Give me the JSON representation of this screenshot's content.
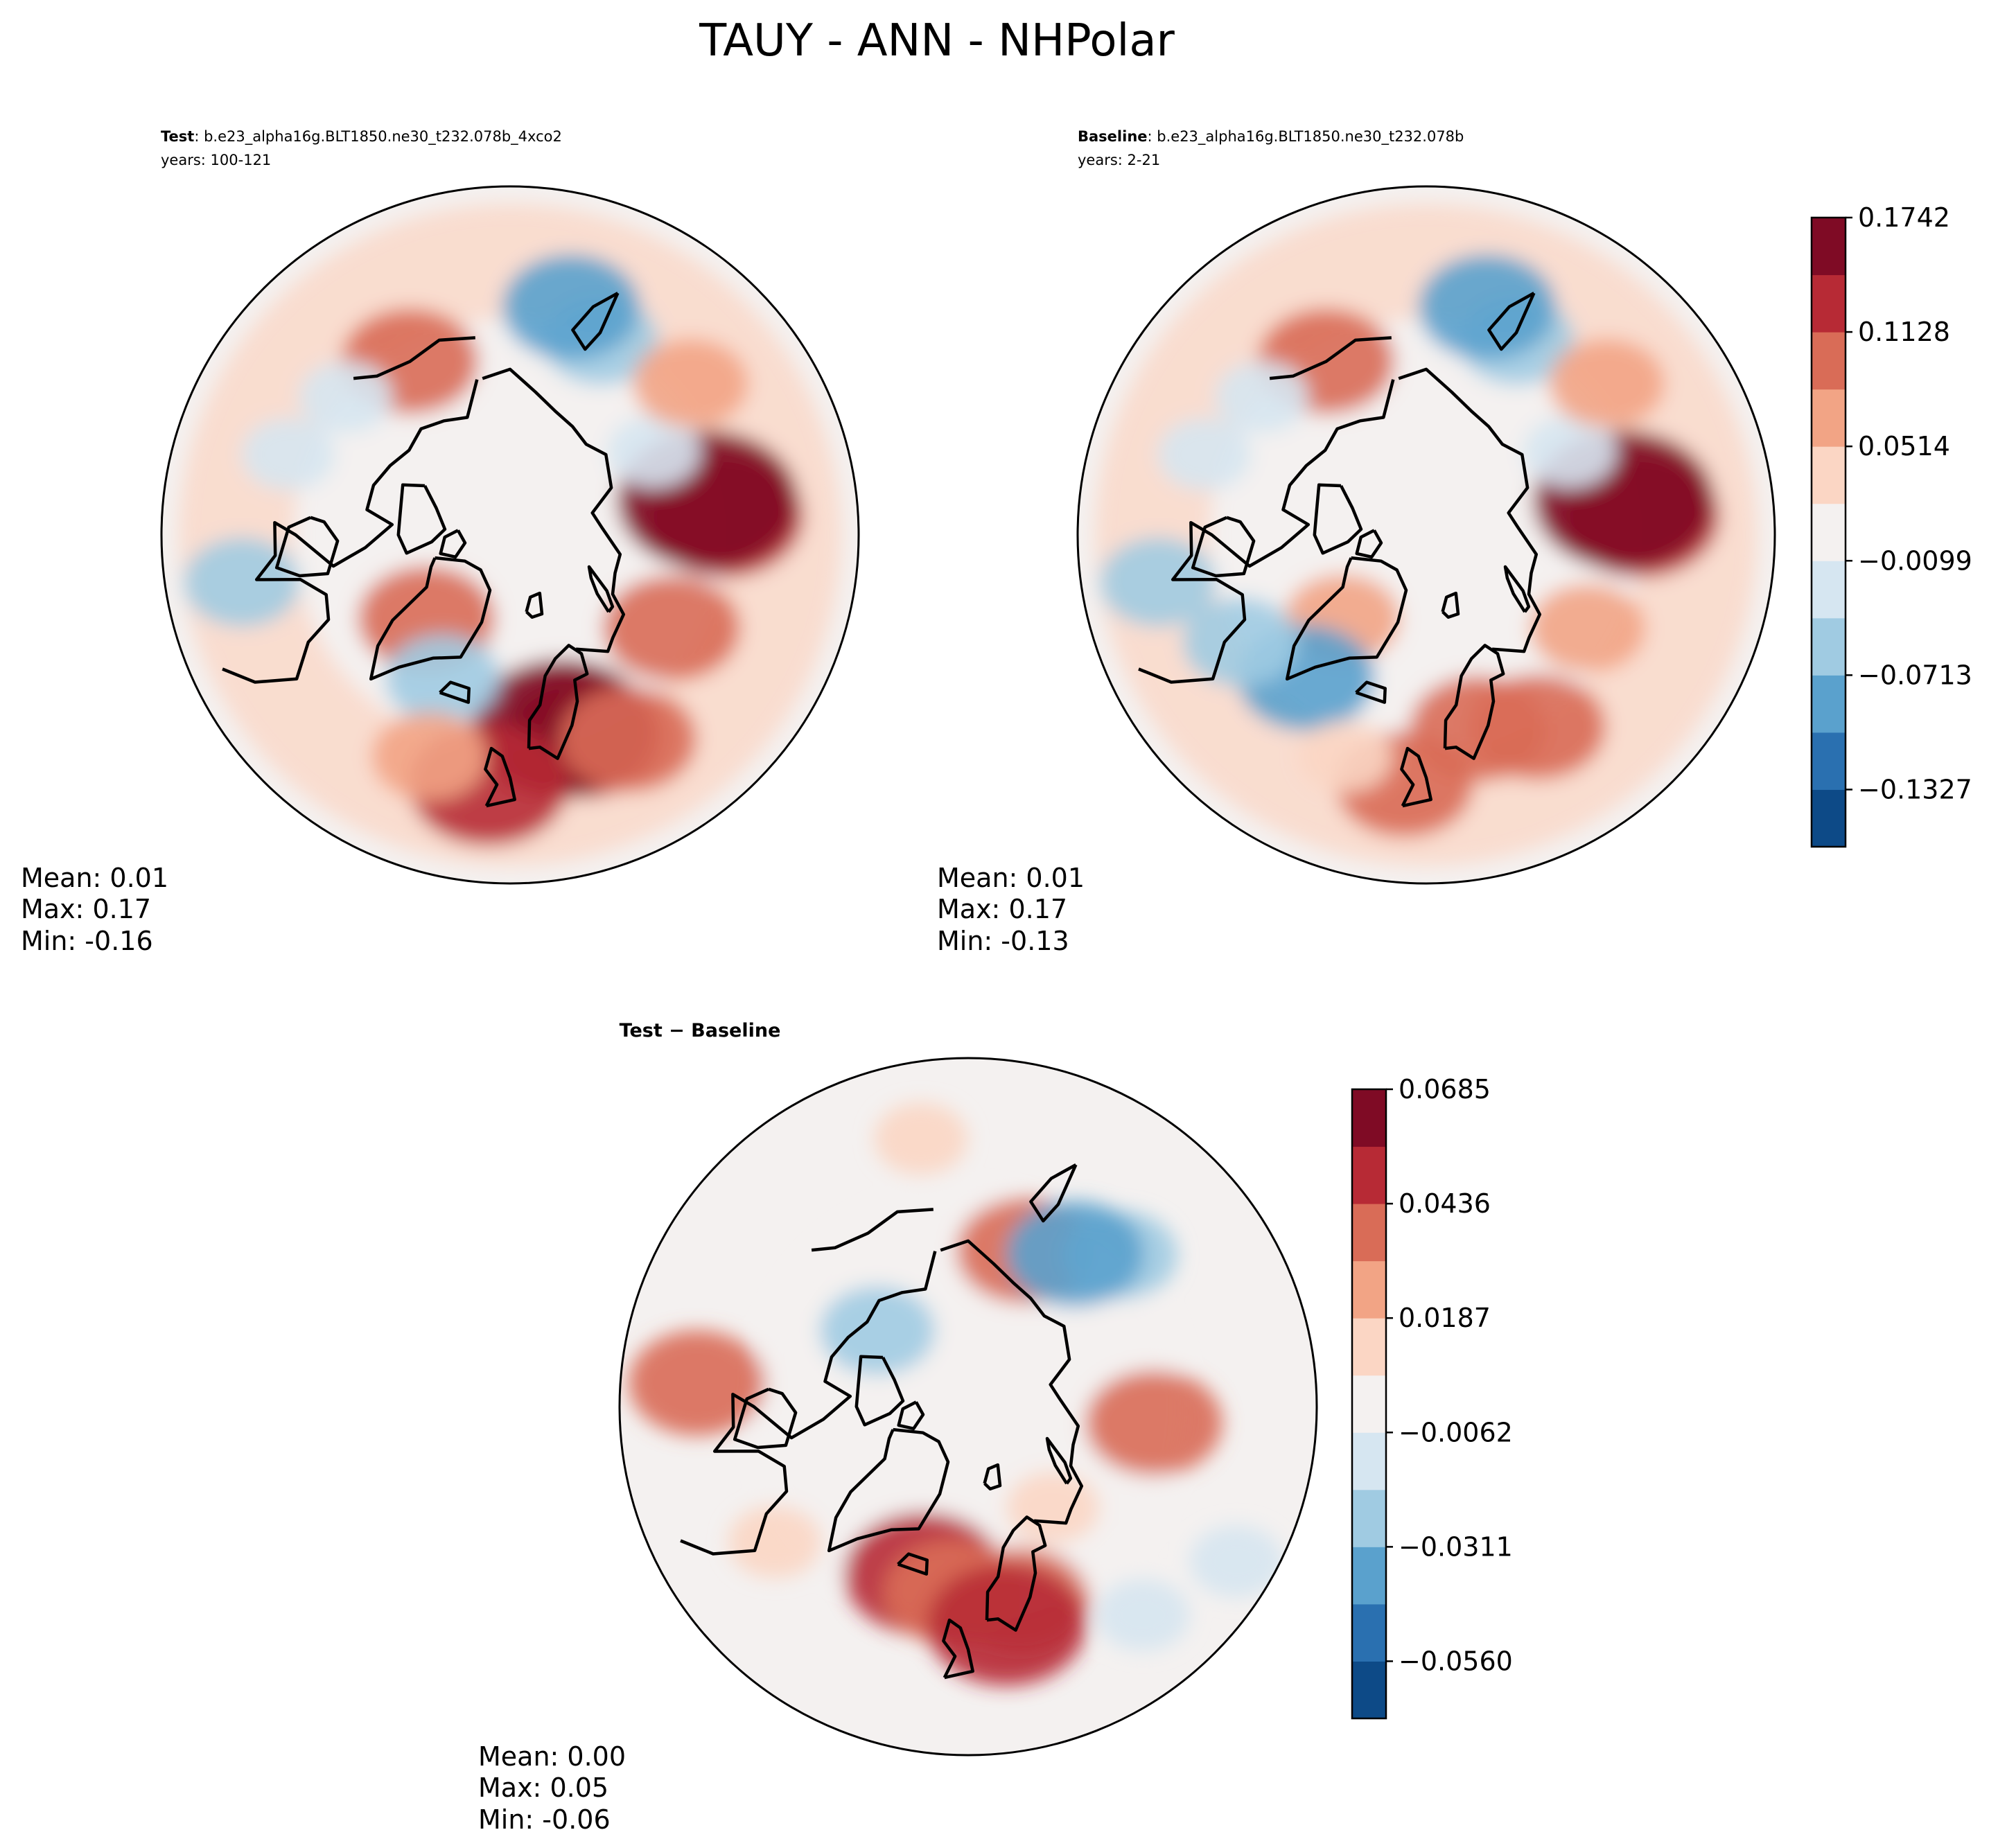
{
  "figure": {
    "title": "TAUY - ANN - NHPolar"
  },
  "colors": {
    "ramp": [
      "#0d4a87",
      "#2a70b0",
      "#5aa1cd",
      "#a0cbe2",
      "#d6e6f1",
      "#f4f1f0",
      "#fbd6c4",
      "#f2a485",
      "#d96c57",
      "#b72a35",
      "#7f0b25"
    ],
    "coast": "#000000",
    "background": "#ffffff"
  },
  "chart_data": [
    {
      "type": "heatmap",
      "projection": "north-polar-stereographic",
      "panel": "test",
      "title_bold": "Test",
      "title_rest": ": b.e23_alpha16g.BLT1850.ne30_t232.078b_4xco2",
      "subtitle": "years: 100-121",
      "stats": {
        "mean": "Mean:  0.01",
        "max": "Max:  0.17",
        "min": "Min: -0.16"
      },
      "colorbar": "shared-top",
      "blobs": [
        {
          "lon": 95,
          "lat": 58,
          "level": 9
        },
        {
          "lon": 100,
          "lat": 60,
          "level": 10
        },
        {
          "lon": 20,
          "lat": 58,
          "level": 9
        },
        {
          "lon": 15,
          "lat": 60,
          "level": 10
        },
        {
          "lon": -5,
          "lat": 53,
          "level": 9
        },
        {
          "lon": 30,
          "lat": 55,
          "level": 8
        },
        {
          "lon": 60,
          "lat": 62,
          "level": 8
        },
        {
          "lon": -45,
          "lat": 72,
          "level": 8
        },
        {
          "lon": -150,
          "lat": 60,
          "level": 8
        },
        {
          "lon": 155,
          "lat": 58,
          "level": 3
        },
        {
          "lon": 165,
          "lat": 55,
          "level": 2
        },
        {
          "lon": -80,
          "lat": 50,
          "level": 3
        },
        {
          "lon": -25,
          "lat": 66,
          "level": 3
        },
        {
          "lon": -110,
          "lat": 55,
          "level": 4
        },
        {
          "lon": -20,
          "lat": 55,
          "level": 7
        },
        {
          "lon": 120,
          "lat": 65,
          "level": 4
        },
        {
          "lon": -130,
          "lat": 58,
          "level": 4
        },
        {
          "lon": 130,
          "lat": 55,
          "level": 7
        }
      ]
    },
    {
      "type": "heatmap",
      "projection": "north-polar-stereographic",
      "panel": "baseline",
      "title_bold": "Baseline",
      "title_rest": ": b.e23_alpha16g.BLT1850.ne30_t232.078b",
      "subtitle": "years: 2-21",
      "stats": {
        "mean": "Mean:  0.01",
        "max": "Max:  0.17",
        "min": "Min: -0.13"
      },
      "colorbar": {
        "levels": [
          -0.1634,
          -0.1327,
          -0.102,
          -0.0713,
          -0.0406,
          -0.0099,
          0.0207,
          0.0514,
          0.0821,
          0.1128,
          0.1435,
          0.1742
        ],
        "ticks": [
          "0.1742",
          "0.1128",
          "0.0514",
          "−0.0099",
          "−0.0713",
          "−0.1327"
        ]
      },
      "blobs": [
        {
          "lon": 95,
          "lat": 58,
          "level": 9
        },
        {
          "lon": 100,
          "lat": 60,
          "level": 10
        },
        {
          "lon": 30,
          "lat": 57,
          "level": 8
        },
        {
          "lon": 15,
          "lat": 60,
          "level": 8
        },
        {
          "lon": -5,
          "lat": 53,
          "level": 8
        },
        {
          "lon": 60,
          "lat": 62,
          "level": 7
        },
        {
          "lon": -45,
          "lat": 72,
          "level": 7
        },
        {
          "lon": -150,
          "lat": 60,
          "level": 8
        },
        {
          "lon": 155,
          "lat": 58,
          "level": 3
        },
        {
          "lon": 165,
          "lat": 55,
          "level": 2
        },
        {
          "lon": -40,
          "lat": 62,
          "level": 2
        },
        {
          "lon": -60,
          "lat": 58,
          "level": 3
        },
        {
          "lon": -80,
          "lat": 50,
          "level": 3
        },
        {
          "lon": -110,
          "lat": 55,
          "level": 4
        },
        {
          "lon": -20,
          "lat": 55,
          "level": 6
        },
        {
          "lon": 120,
          "lat": 65,
          "level": 4
        },
        {
          "lon": -130,
          "lat": 58,
          "level": 4
        },
        {
          "lon": 130,
          "lat": 55,
          "level": 7
        }
      ]
    },
    {
      "type": "heatmap",
      "projection": "north-polar-stereographic",
      "panel": "difference",
      "title_bold": "Test − Baseline",
      "title_rest": "",
      "subtitle": "",
      "stats": {
        "mean": "Mean:  0.00",
        "max": "Max:  0.05",
        "min": "Min: -0.06"
      },
      "colorbar": {
        "levels": [
          -0.0685,
          -0.056,
          -0.0436,
          -0.0311,
          -0.0187,
          -0.0062,
          0.0062,
          0.0187,
          0.0311,
          0.0436,
          0.056,
          0.0685
        ],
        "ticks": [
          "0.0685",
          "0.0436",
          "0.0187",
          "−0.0062",
          "−0.0311",
          "−0.0560"
        ]
      },
      "blobs": [
        {
          "lon": -15,
          "lat": 64,
          "level": 9
        },
        {
          "lon": -5,
          "lat": 62,
          "level": 8
        },
        {
          "lon": 15,
          "lat": 60,
          "level": 8
        },
        {
          "lon": 10,
          "lat": 57,
          "level": 9
        },
        {
          "lon": 160,
          "lat": 65,
          "level": 8
        },
        {
          "lon": -95,
          "lat": 50,
          "level": 8
        },
        {
          "lon": 85,
          "lat": 62,
          "level": 8
        },
        {
          "lon": 135,
          "lat": 58,
          "level": 3
        },
        {
          "lon": 145,
          "lat": 62,
          "level": 2
        },
        {
          "lon": -130,
          "lat": 72,
          "level": 3
        },
        {
          "lon": 40,
          "lat": 50,
          "level": 4
        },
        {
          "lon": 60,
          "lat": 45,
          "level": 4
        },
        {
          "lon": -55,
          "lat": 55,
          "level": 6
        },
        {
          "lon": 40,
          "lat": 70,
          "level": 6
        },
        {
          "lon": -170,
          "lat": 50,
          "level": 6
        }
      ]
    }
  ]
}
